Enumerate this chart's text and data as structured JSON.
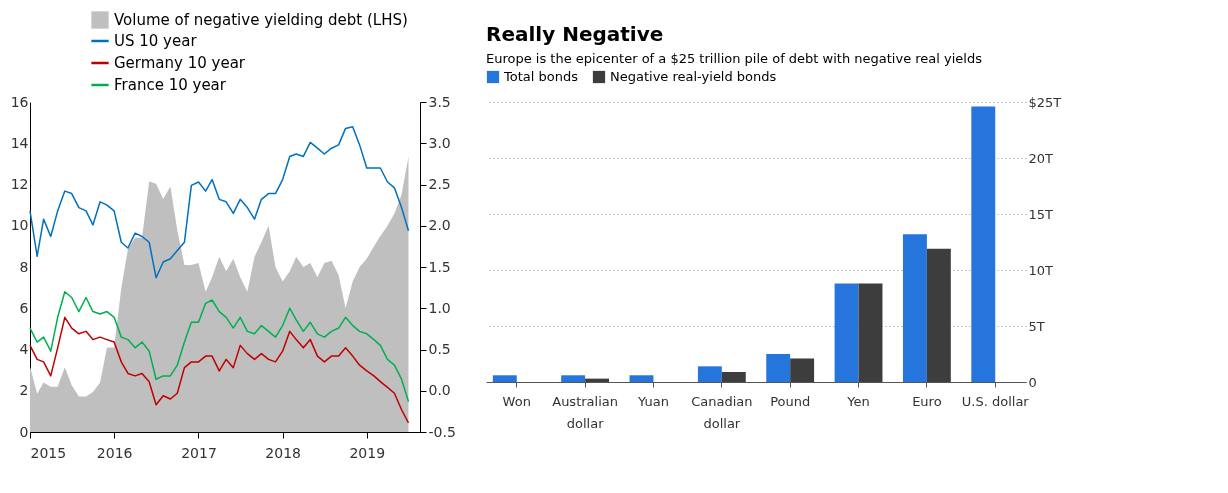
{
  "chart_data": [
    {
      "type": "line",
      "legend": "top",
      "x": [
        "2015-01",
        "2015-02",
        "2015-03",
        "2015-04",
        "2015-05",
        "2015-06",
        "2015-07",
        "2015-08",
        "2015-09",
        "2015-10",
        "2015-11",
        "2015-12",
        "2016-01",
        "2016-02",
        "2016-03",
        "2016-04",
        "2016-05",
        "2016-06",
        "2016-07",
        "2016-08",
        "2016-09",
        "2016-10",
        "2016-11",
        "2016-12",
        "2017-01",
        "2017-02",
        "2017-03",
        "2017-04",
        "2017-05",
        "2017-06",
        "2017-07",
        "2017-08",
        "2017-09",
        "2017-10",
        "2017-11",
        "2017-12",
        "2018-01",
        "2018-02",
        "2018-03",
        "2018-04",
        "2018-05",
        "2018-06",
        "2018-07",
        "2018-08",
        "2018-09",
        "2018-10",
        "2018-11",
        "2018-12",
        "2019-01",
        "2019-02",
        "2019-03",
        "2019-04",
        "2019-05",
        "2019-06",
        "2019-07"
      ],
      "xlim": [
        "2015-01-01",
        "2019-08-20"
      ],
      "xticks": [
        "2015",
        "2016",
        "2017",
        "2018",
        "2019"
      ],
      "ylim": [
        0,
        16
      ],
      "yticks": [
        0,
        2,
        4,
        6,
        8,
        10,
        12,
        14,
        16
      ],
      "y2lim": [
        -0.5,
        3.5
      ],
      "y2ticks": [
        {
          "value": -0.5,
          "label": "-0.5"
        },
        {
          "value": 0,
          "label": "0.0"
        },
        {
          "value": 0.5,
          "label": "0.5"
        },
        {
          "value": 1,
          "label": "1.0"
        },
        {
          "value": 1.5,
          "label": "1.5"
        },
        {
          "value": 2,
          "label": "2.0"
        },
        {
          "value": 2.5,
          "label": "2.5"
        },
        {
          "value": 3,
          "label": "3.0"
        },
        {
          "value": 3.5,
          "label": "3.5"
        }
      ],
      "series": [
        {
          "name": "Volume of negative yielding debt (LHS)",
          "type": "area",
          "color": "#bfbfbf",
          "values": [
            3.18,
            1.86,
            2.4,
            2.2,
            2.2,
            3.14,
            2.27,
            1.72,
            1.72,
            1.94,
            2.4,
            4.1,
            4.1,
            6.97,
            8.87,
            9.42,
            9.42,
            12.15,
            12.04,
            11.3,
            11.9,
            9.79,
            8.1,
            8.1,
            8.2,
            6.8,
            7.5,
            8.5,
            7.8,
            8.4,
            7.5,
            6.8,
            8.5,
            9.2,
            10.0,
            8.0,
            7.3,
            7.8,
            8.5,
            8.0,
            8.2,
            7.5,
            8.2,
            8.3,
            7.6,
            6.0,
            7.3,
            8.0,
            8.4,
            9.0,
            9.5,
            10.0,
            10.6,
            11.5,
            13.35
          ]
        },
        {
          "name": "US 10 year",
          "axis": "y2",
          "color": "#0070c0",
          "values": [
            2.18,
            1.63,
            2.08,
            1.87,
            2.18,
            2.42,
            2.39,
            2.22,
            2.18,
            2.01,
            2.29,
            2.25,
            2.18,
            1.8,
            1.73,
            1.91,
            1.87,
            1.8,
            1.37,
            1.56,
            1.6,
            1.7,
            1.8,
            2.49,
            2.53,
            2.42,
            2.56,
            2.32,
            2.29,
            2.15,
            2.32,
            2.22,
            2.08,
            2.32,
            2.39,
            2.39,
            2.56,
            2.84,
            2.87,
            2.84,
            3.01,
            2.94,
            2.87,
            2.94,
            2.98,
            3.18,
            3.2,
            2.98,
            2.7,
            2.7,
            2.7,
            2.53,
            2.46,
            2.22,
            1.94
          ]
        },
        {
          "name": "Germany 10 year",
          "axis": "y2",
          "color": "#c00000",
          "values": [
            0.55,
            0.38,
            0.35,
            0.18,
            0.52,
            0.89,
            0.76,
            0.69,
            0.72,
            0.62,
            0.65,
            0.62,
            0.59,
            0.35,
            0.21,
            0.18,
            0.21,
            0.11,
            -0.17,
            -0.06,
            -0.1,
            -0.03,
            0.28,
            0.35,
            0.35,
            0.42,
            0.42,
            0.24,
            0.38,
            0.28,
            0.55,
            0.45,
            0.38,
            0.45,
            0.38,
            0.35,
            0.48,
            0.72,
            0.62,
            0.52,
            0.62,
            0.42,
            0.35,
            0.42,
            0.42,
            0.52,
            0.42,
            0.31,
            0.24,
            0.18,
            0.11,
            0.04,
            -0.03,
            -0.23,
            -0.39
          ]
        },
        {
          "name": "France 10 year",
          "axis": "y2",
          "color": "#00b050",
          "values": [
            0.76,
            0.59,
            0.65,
            0.48,
            0.89,
            1.2,
            1.13,
            0.96,
            1.13,
            0.96,
            0.93,
            0.96,
            0.89,
            0.65,
            0.62,
            0.52,
            0.59,
            0.48,
            0.14,
            0.18,
            0.18,
            0.31,
            0.59,
            0.83,
            0.83,
            1.06,
            1.1,
            0.96,
            0.89,
            0.76,
            0.89,
            0.72,
            0.69,
            0.79,
            0.72,
            0.65,
            0.79,
            1.0,
            0.86,
            0.72,
            0.83,
            0.69,
            0.65,
            0.72,
            0.76,
            0.89,
            0.79,
            0.72,
            0.69,
            0.62,
            0.55,
            0.38,
            0.31,
            0.14,
            -0.13
          ]
        }
      ]
    },
    {
      "type": "bar",
      "title": "Really Negative",
      "subtitle": "Europe is the epicenter of a $25 trillion pile of debt with negative real yields",
      "legend": "top left",
      "grid": "y",
      "categories": [
        "Won",
        "Australian\ndollar",
        "Yuan",
        "Canadian\ndollar",
        "Pound",
        "Yen",
        "Euro",
        "U.S. dollar"
      ],
      "ylim": [
        0,
        25
      ],
      "yticks": [
        0,
        {
          "value": 5,
          "label": "5T"
        },
        {
          "value": 10,
          "label": "10T"
        },
        {
          "value": 15,
          "label": "15T"
        },
        {
          "value": 20,
          "label": "20T"
        },
        {
          "value": 25,
          "label": "$25T"
        }
      ],
      "series": [
        {
          "name": "Total bonds",
          "color": "#2675dc",
          "values": [
            0.6,
            0.6,
            0.6,
            1.4,
            2.5,
            8.8,
            13.2,
            24.6
          ]
        },
        {
          "name": "Negative real-yield bonds",
          "color": "#3d3d3d",
          "values": [
            0,
            0.3,
            0,
            0.9,
            2.1,
            8.8,
            11.9,
            0
          ]
        }
      ]
    }
  ]
}
